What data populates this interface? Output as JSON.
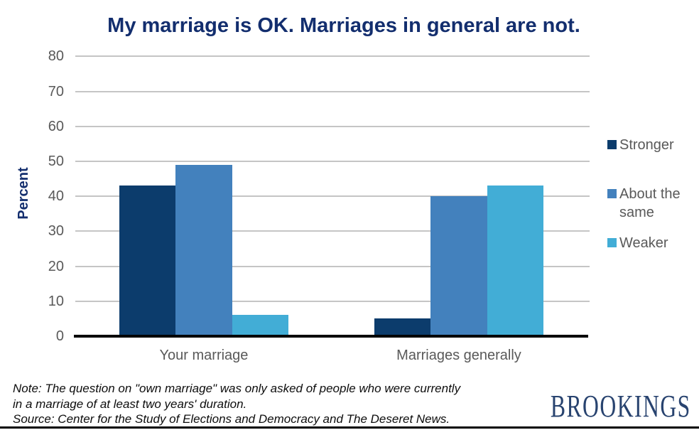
{
  "chart_data": {
    "type": "bar",
    "title": "My marriage is OK. Marriages in general are not.",
    "xlabel": "",
    "ylabel": "Percent",
    "categories": [
      "Your marriage",
      "Marriages generally"
    ],
    "series": [
      {
        "name": "Stronger",
        "color": "#0c3c6c",
        "values": [
          43,
          5
        ]
      },
      {
        "name": "About the same",
        "color": "#4381bd",
        "values": [
          49,
          40
        ]
      },
      {
        "name": "Weaker",
        "color": "#42add6",
        "values": [
          6,
          43
        ]
      }
    ],
    "ylim": [
      0,
      80
    ],
    "yticks": [
      0,
      10,
      20,
      30,
      40,
      50,
      60,
      70,
      80
    ],
    "grid": true,
    "legend_position": "right"
  },
  "colors": {
    "title_text": "#132e6e",
    "axis_label_text": "#132e6e",
    "tick_text": "#595959",
    "gridline": "#c5c5c5",
    "axis_line": "#000000",
    "brand_text": "#28436f"
  },
  "footer": {
    "note_lines": [
      "Note: The question on \"own marriage\" was only asked of people who were currently",
      "in a marriage of at least two years' duration.",
      "Source: Center for the Study of Elections and Democracy and The Deseret News."
    ],
    "brand": "BROOKINGS"
  }
}
